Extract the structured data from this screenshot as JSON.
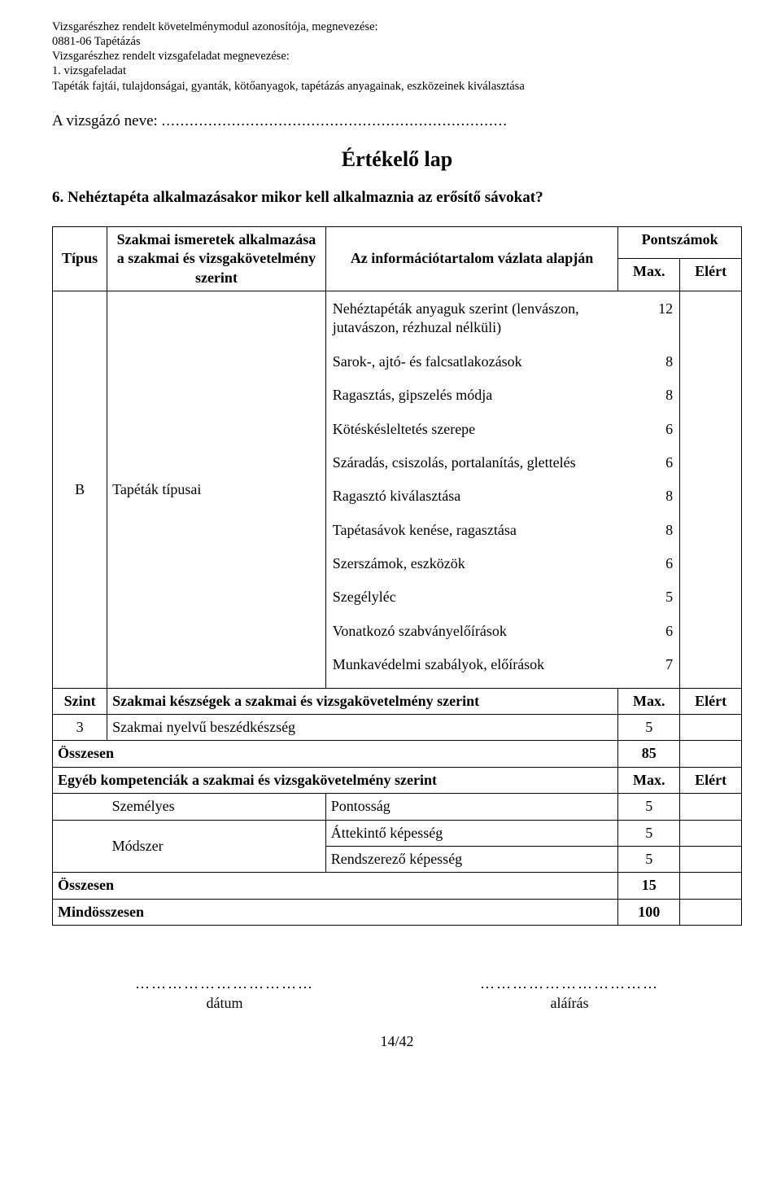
{
  "meta": {
    "line1": "Vizsgarészhez rendelt követelménymodul azonosítója, megnevezése:",
    "line2": "0881-06 Tapétázás",
    "line3": "Vizsgarészhez rendelt vizsgafeladat megnevezése:",
    "line4": "1. vizsgafeladat",
    "line5": "Tapéták fajtái, tulajdonságai, gyanták, kötőanyagok, tapétázás anyagainak, eszközeinek kiválasztása"
  },
  "candidate": {
    "label": "A vizsgázó neve:",
    "dots": ".........................................................................."
  },
  "title": "Értékelő lap",
  "question": "6. Nehéztapéta alkalmazásakor mikor kell alkalmaznia az erősítő sávokat?",
  "table": {
    "head": {
      "tipus": "Típus",
      "ismeretek": "Szakmai ismeretek alkalmazása a szakmai és vizsgakövetelmény szerint",
      "vazlat": "Az információtartalom vázlata alapján",
      "pontszamok": "Pontszámok",
      "max": "Max.",
      "elert": "Elért"
    },
    "row1": {
      "tipus": "B",
      "ismeretek": "Tapéták típusai",
      "items": [
        {
          "label": "Nehéztapéták anyaguk szerint (lenvászon, jutavászon, rézhuzal nélküli)",
          "value": 12
        },
        {
          "label": "Sarok-, ajtó- és falcsatlakozások",
          "value": 8
        },
        {
          "label": "Ragasztás, gipszelés módja",
          "value": 8
        },
        {
          "label": "Kötéskésleltetés szerepe",
          "value": 6
        },
        {
          "label": "Száradás, csiszolás, portalanítás, glettelés",
          "value": 6
        },
        {
          "label": "Ragasztó kiválasztása",
          "value": 8
        },
        {
          "label": "Tapétasávok kenése, ragasztása",
          "value": 8
        },
        {
          "label": "Szerszámok, eszközök",
          "value": 6
        },
        {
          "label": "Szegélyléc",
          "value": 5
        },
        {
          "label": "Vonatkozó szabványelőírások",
          "value": 6
        },
        {
          "label": "Munkavédelmi szabályok, előírások",
          "value": 7
        }
      ]
    },
    "szint_header": {
      "szint": "Szint",
      "label": "Szakmai készségek a szakmai és vizsgakövetelmény szerint",
      "max": "Max.",
      "elert": "Elért"
    },
    "szint_row": {
      "szint": "3",
      "label": "Szakmai nyelvű beszédkészség",
      "max": 5
    },
    "osszesen1": {
      "label": "Összesen",
      "value": 85
    },
    "egyeb_header": {
      "label": "Egyéb kompetenciák a szakmai és vizsgakövetelmény szerint",
      "max": "Max.",
      "elert": "Elért"
    },
    "comp": {
      "szemelyes_label": "Személyes",
      "modszer_label": "Módszer",
      "rows": [
        {
          "label": "Pontosság",
          "value": 5
        },
        {
          "label": "Áttekintő képesség",
          "value": 5
        },
        {
          "label": "Rendszerező képesség",
          "value": 5
        }
      ]
    },
    "osszesen2": {
      "label": "Összesen",
      "value": 15
    },
    "mindosszesen": {
      "label": "Mindösszesen",
      "value": 100
    }
  },
  "footer": {
    "dots": "……………………………",
    "datum": "dátum",
    "alairas": "aláírás",
    "pagenum": "14/42"
  }
}
